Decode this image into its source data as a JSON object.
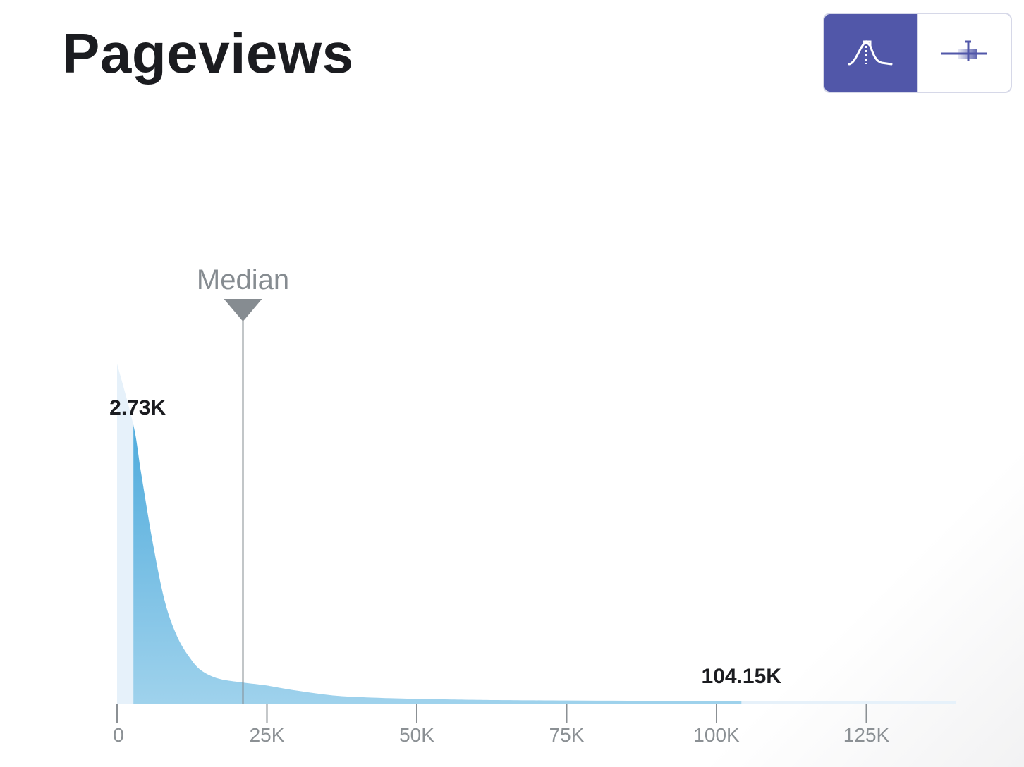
{
  "header": {
    "title": "Pageviews"
  },
  "toggle": {
    "options": [
      {
        "icon": "distribution-curve-icon",
        "active": true
      },
      {
        "icon": "box-plot-icon",
        "active": false
      }
    ]
  },
  "colors": {
    "accent": "#5157a9",
    "area_dark": "#3fa3d9",
    "area_light": "#9fd2ec",
    "area_faint": "#e6f1fa",
    "median_line": "#868c91",
    "axis": "#8b9094"
  },
  "chart_data": {
    "type": "area",
    "title": "Pageviews",
    "xlabel": "",
    "ylabel": "",
    "xlim": [
      0,
      140000
    ],
    "x_ticks": [
      0,
      25000,
      50000,
      75000,
      100000,
      125000
    ],
    "x_tick_labels": [
      "0",
      "25K",
      "50K",
      "75K",
      "100K",
      "125K"
    ],
    "grid": false,
    "series": [
      {
        "x": [
          0,
          2730,
          4000,
          6000,
          8000,
          10000,
          12000,
          14000,
          17000,
          21000,
          25000,
          30000,
          36000,
          42000,
          50000,
          60000,
          75000,
          90000,
          104150,
          115000,
          125000,
          140000
        ],
        "y": [
          1.0,
          0.82,
          0.68,
          0.47,
          0.3,
          0.2,
          0.14,
          0.1,
          0.075,
          0.064,
          0.055,
          0.04,
          0.026,
          0.02,
          0.016,
          0.013,
          0.011,
          0.01,
          0.009,
          0.009,
          0.009,
          0.009
        ]
      }
    ],
    "highlight_range": [
      2730,
      104150
    ],
    "range_labels": [
      "2.73K",
      "104.15K"
    ],
    "median": {
      "label": "Median",
      "x": 21000
    }
  }
}
